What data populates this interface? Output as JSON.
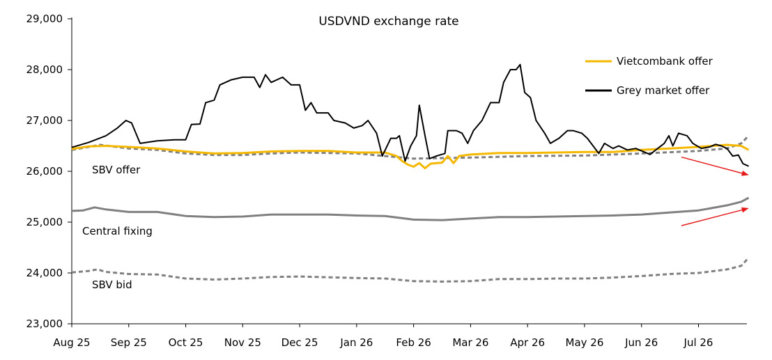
{
  "chart_data": {
    "type": "line",
    "title": "USDVND exchange rate",
    "ylim": [
      23000,
      29000
    ],
    "y_ticks": [
      "23,000",
      "24,000",
      "25,000",
      "26,000",
      "27,000",
      "28,000",
      "29,000"
    ],
    "y_tick_values": [
      23000,
      24000,
      25000,
      26000,
      27000,
      28000,
      29000
    ],
    "x_ticks": [
      "Aug 25",
      "Sep 25",
      "Oct 25",
      "Nov 25",
      "Dec 25",
      "Jan 26",
      "Feb 26",
      "Mar 26",
      "Apr 26",
      "May 26",
      "Jun 26",
      "Jul 26"
    ],
    "x_range_months": [
      0,
      12
    ],
    "grid": false,
    "legend_position": "top-right",
    "legend": [
      {
        "name": "Vietcombank offer",
        "color": "#f5b800"
      },
      {
        "name": "Grey market offer",
        "color": "#000000"
      }
    ],
    "annotations": [
      {
        "text": "SBV offer"
      },
      {
        "text": "Central fixing"
      },
      {
        "text": "SBV bid"
      }
    ],
    "series": [
      {
        "name": "Grey market offer",
        "color": "#000000",
        "points": [
          [
            0.0,
            26470
          ],
          [
            0.3,
            26570
          ],
          [
            0.6,
            26700
          ],
          [
            0.8,
            26850
          ],
          [
            0.95,
            27000
          ],
          [
            1.05,
            26950
          ],
          [
            1.2,
            26550
          ],
          [
            1.5,
            26600
          ],
          [
            1.8,
            26620
          ],
          [
            2.0,
            26620
          ],
          [
            2.1,
            26920
          ],
          [
            2.25,
            26930
          ],
          [
            2.35,
            27350
          ],
          [
            2.5,
            27400
          ],
          [
            2.6,
            27700
          ],
          [
            2.8,
            27800
          ],
          [
            3.0,
            27850
          ],
          [
            3.2,
            27850
          ],
          [
            3.3,
            27650
          ],
          [
            3.4,
            27900
          ],
          [
            3.5,
            27750
          ],
          [
            3.7,
            27850
          ],
          [
            3.85,
            27700
          ],
          [
            4.0,
            27700
          ],
          [
            4.1,
            27200
          ],
          [
            4.2,
            27350
          ],
          [
            4.3,
            27150
          ],
          [
            4.5,
            27150
          ],
          [
            4.6,
            27000
          ],
          [
            4.8,
            26950
          ],
          [
            4.95,
            26850
          ],
          [
            5.1,
            26900
          ],
          [
            5.2,
            27000
          ],
          [
            5.35,
            26750
          ],
          [
            5.45,
            26300
          ],
          [
            5.6,
            26650
          ],
          [
            5.7,
            26650
          ],
          [
            5.75,
            26700
          ],
          [
            5.85,
            26200
          ],
          [
            5.95,
            26500
          ],
          [
            6.05,
            26700
          ],
          [
            6.1,
            27300
          ],
          [
            6.2,
            26700
          ],
          [
            6.28,
            26250
          ],
          [
            6.4,
            26300
          ],
          [
            6.55,
            26350
          ],
          [
            6.6,
            26800
          ],
          [
            6.75,
            26800
          ],
          [
            6.85,
            26750
          ],
          [
            6.95,
            26550
          ],
          [
            7.05,
            26800
          ],
          [
            7.2,
            27000
          ],
          [
            7.35,
            27350
          ],
          [
            7.5,
            27350
          ],
          [
            7.58,
            27750
          ],
          [
            7.7,
            28000
          ],
          [
            7.8,
            28000
          ],
          [
            7.87,
            28100
          ],
          [
            7.95,
            27550
          ],
          [
            8.05,
            27450
          ],
          [
            8.15,
            27000
          ],
          [
            8.3,
            26750
          ],
          [
            8.4,
            26550
          ],
          [
            8.55,
            26650
          ],
          [
            8.7,
            26800
          ],
          [
            8.8,
            26800
          ],
          [
            8.95,
            26750
          ],
          [
            9.05,
            26650
          ],
          [
            9.15,
            26500
          ],
          [
            9.25,
            26350
          ],
          [
            9.35,
            26550
          ],
          [
            9.5,
            26450
          ],
          [
            9.6,
            26500
          ],
          [
            9.75,
            26420
          ],
          [
            9.9,
            26450
          ],
          [
            10.05,
            26380
          ],
          [
            10.15,
            26330
          ],
          [
            10.25,
            26420
          ],
          [
            10.4,
            26550
          ],
          [
            10.48,
            26700
          ],
          [
            10.55,
            26500
          ],
          [
            10.65,
            26750
          ],
          [
            10.8,
            26700
          ],
          [
            10.9,
            26550
          ],
          [
            11.05,
            26450
          ],
          [
            11.2,
            26480
          ],
          [
            11.3,
            26530
          ],
          [
            11.4,
            26500
          ],
          [
            11.5,
            26450
          ],
          [
            11.6,
            26300
          ],
          [
            11.7,
            26320
          ],
          [
            11.78,
            26150
          ],
          [
            11.88,
            26100
          ]
        ]
      },
      {
        "name": "Vietcombank offer",
        "color": "#f5b800",
        "points": [
          [
            0.0,
            26440
          ],
          [
            0.3,
            26490
          ],
          [
            0.6,
            26500
          ],
          [
            1.0,
            26480
          ],
          [
            1.5,
            26450
          ],
          [
            2.0,
            26390
          ],
          [
            2.5,
            26350
          ],
          [
            3.0,
            26360
          ],
          [
            3.5,
            26390
          ],
          [
            4.0,
            26400
          ],
          [
            4.5,
            26400
          ],
          [
            5.0,
            26370
          ],
          [
            5.5,
            26370
          ],
          [
            5.7,
            26300
          ],
          [
            5.8,
            26200
          ],
          [
            5.9,
            26130
          ],
          [
            6.0,
            26090
          ],
          [
            6.1,
            26160
          ],
          [
            6.2,
            26060
          ],
          [
            6.3,
            26150
          ],
          [
            6.5,
            26170
          ],
          [
            6.6,
            26300
          ],
          [
            6.7,
            26160
          ],
          [
            6.8,
            26300
          ],
          [
            7.0,
            26330
          ],
          [
            7.5,
            26360
          ],
          [
            8.0,
            26360
          ],
          [
            8.5,
            26370
          ],
          [
            9.0,
            26380
          ],
          [
            9.5,
            26380
          ],
          [
            10.0,
            26420
          ],
          [
            10.5,
            26450
          ],
          [
            11.0,
            26480
          ],
          [
            11.5,
            26520
          ],
          [
            11.75,
            26500
          ],
          [
            11.88,
            26420
          ]
        ]
      },
      {
        "name": "SBV offer",
        "color": "#808080",
        "dashed": true,
        "points": [
          [
            0.0,
            26420
          ],
          [
            0.5,
            26520
          ],
          [
            1.0,
            26450
          ],
          [
            1.5,
            26420
          ],
          [
            2.0,
            26350
          ],
          [
            2.5,
            26320
          ],
          [
            3.0,
            26320
          ],
          [
            3.5,
            26350
          ],
          [
            4.0,
            26370
          ],
          [
            5.0,
            26350
          ],
          [
            6.0,
            26250
          ],
          [
            7.0,
            26270
          ],
          [
            8.0,
            26300
          ],
          [
            9.0,
            26310
          ],
          [
            10.0,
            26350
          ],
          [
            11.0,
            26400
          ],
          [
            11.5,
            26450
          ],
          [
            11.75,
            26550
          ],
          [
            11.88,
            26700
          ]
        ]
      },
      {
        "name": "Central fixing",
        "color": "#808080",
        "dashed": false,
        "points": [
          [
            0.0,
            25220
          ],
          [
            0.2,
            25230
          ],
          [
            0.4,
            25290
          ],
          [
            0.6,
            25250
          ],
          [
            1.0,
            25200
          ],
          [
            1.5,
            25200
          ],
          [
            2.0,
            25120
          ],
          [
            2.5,
            25100
          ],
          [
            3.0,
            25110
          ],
          [
            3.5,
            25150
          ],
          [
            4.0,
            25150
          ],
          [
            4.5,
            25150
          ],
          [
            5.0,
            25130
          ],
          [
            5.5,
            25120
          ],
          [
            6.0,
            25050
          ],
          [
            6.5,
            25040
          ],
          [
            7.0,
            25070
          ],
          [
            7.5,
            25100
          ],
          [
            8.0,
            25100
          ],
          [
            8.5,
            25110
          ],
          [
            9.0,
            25120
          ],
          [
            9.5,
            25130
          ],
          [
            10.0,
            25150
          ],
          [
            10.5,
            25190
          ],
          [
            11.0,
            25230
          ],
          [
            11.5,
            25330
          ],
          [
            11.75,
            25400
          ],
          [
            11.88,
            25480
          ]
        ]
      },
      {
        "name": "SBV bid",
        "color": "#808080",
        "dashed": true,
        "points": [
          [
            0.0,
            24010
          ],
          [
            0.3,
            24040
          ],
          [
            0.45,
            24070
          ],
          [
            0.6,
            24020
          ],
          [
            1.0,
            23980
          ],
          [
            1.5,
            23970
          ],
          [
            2.0,
            23890
          ],
          [
            2.5,
            23870
          ],
          [
            3.0,
            23890
          ],
          [
            3.5,
            23920
          ],
          [
            4.0,
            23930
          ],
          [
            5.0,
            23900
          ],
          [
            5.5,
            23890
          ],
          [
            6.0,
            23840
          ],
          [
            6.5,
            23830
          ],
          [
            7.0,
            23840
          ],
          [
            7.5,
            23880
          ],
          [
            8.0,
            23880
          ],
          [
            8.5,
            23890
          ],
          [
            9.0,
            23890
          ],
          [
            9.5,
            23910
          ],
          [
            10.0,
            23940
          ],
          [
            10.5,
            23980
          ],
          [
            11.0,
            24000
          ],
          [
            11.5,
            24070
          ],
          [
            11.75,
            24140
          ],
          [
            11.88,
            24300
          ]
        ]
      }
    ],
    "arrows": [
      {
        "from": [
          10.7,
          26280
        ],
        "to": [
          11.87,
          25930
        ],
        "color": "#e51b1b"
      },
      {
        "from": [
          10.7,
          24930
        ],
        "to": [
          11.87,
          25270
        ],
        "color": "#e51b1b"
      }
    ]
  }
}
